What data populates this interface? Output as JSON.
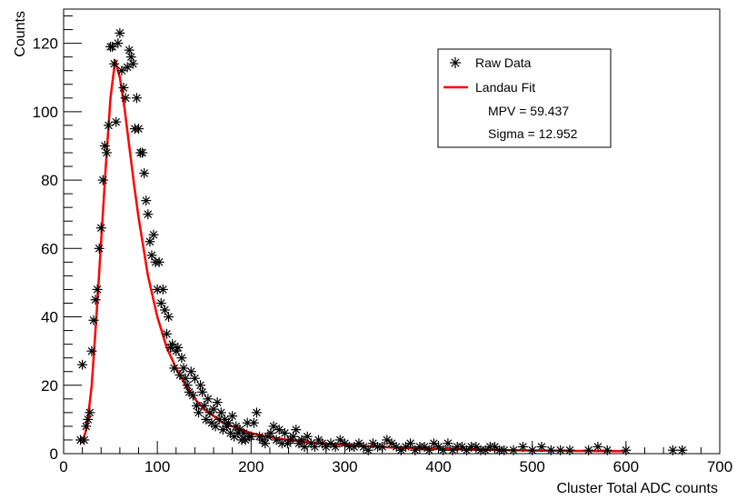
{
  "chart_data": {
    "type": "scatter",
    "xlabel": "Cluster Total ADC counts",
    "ylabel": "Counts",
    "xlim": [
      0,
      700
    ],
    "ylim": [
      0,
      130
    ],
    "x_ticks": [
      0,
      100,
      200,
      300,
      400,
      500,
      600,
      700
    ],
    "y_ticks": [
      0,
      20,
      40,
      60,
      80,
      100,
      120
    ],
    "grid": false,
    "legend_position": "top-right",
    "legend": {
      "raw_label": "Raw Data",
      "fit_label": "Landau Fit",
      "mpv_text": "MPV = 59.437",
      "sigma_text": "Sigma = 12.952"
    },
    "series": [
      {
        "name": "Raw Data",
        "marker": "asterisk",
        "color": "#000000",
        "x": [
          18,
          20,
          22,
          24,
          26,
          28,
          30,
          32,
          34,
          36,
          38,
          40,
          42,
          44,
          46,
          48,
          50,
          52,
          54,
          56,
          58,
          60,
          62,
          64,
          66,
          68,
          70,
          72,
          74,
          76,
          78,
          80,
          82,
          84,
          86,
          88,
          90,
          92,
          94,
          96,
          98,
          100,
          102,
          104,
          106,
          108,
          110,
          112,
          114,
          116,
          118,
          120,
          122,
          124,
          126,
          128,
          130,
          132,
          134,
          136,
          138,
          140,
          142,
          144,
          146,
          148,
          150,
          152,
          154,
          156,
          158,
          160,
          162,
          164,
          166,
          168,
          170,
          172,
          174,
          176,
          178,
          180,
          182,
          184,
          186,
          188,
          190,
          192,
          194,
          196,
          198,
          200,
          203,
          206,
          209,
          212,
          215,
          218,
          221,
          224,
          227,
          230,
          233,
          236,
          239,
          242,
          245,
          248,
          251,
          254,
          257,
          260,
          264,
          268,
          272,
          276,
          280,
          285,
          290,
          295,
          300,
          305,
          310,
          315,
          320,
          325,
          330,
          335,
          340,
          345,
          350,
          355,
          360,
          365,
          370,
          375,
          380,
          385,
          390,
          395,
          400,
          405,
          410,
          415,
          420,
          425,
          430,
          435,
          440,
          445,
          450,
          455,
          460,
          465,
          470,
          480,
          490,
          500,
          510,
          520,
          530,
          540,
          560,
          570,
          580,
          600,
          650,
          660
        ],
        "y": [
          4,
          26,
          4,
          8,
          10,
          12,
          30,
          39,
          45,
          48,
          60,
          66,
          80,
          90,
          88,
          96,
          119,
          119,
          114,
          97,
          120,
          123,
          112,
          107,
          104,
          113,
          118,
          116,
          114,
          95,
          104,
          95,
          88,
          88,
          82,
          74,
          70,
          62,
          58,
          64,
          56,
          48,
          56,
          44,
          48,
          42,
          35,
          40,
          31,
          32,
          25,
          30,
          31,
          23,
          28,
          25,
          22,
          20,
          18,
          24,
          17,
          22,
          14,
          12,
          20,
          18,
          14,
          10,
          16,
          12,
          9,
          13,
          8,
          15,
          10,
          12,
          7,
          10,
          8,
          9,
          6,
          11,
          5,
          8,
          6,
          7,
          4,
          6,
          4,
          9,
          5,
          5,
          9,
          12,
          5,
          4,
          3,
          5,
          6,
          8,
          4,
          7,
          3,
          6,
          3,
          4,
          5,
          7,
          3,
          4,
          2,
          5,
          3,
          2,
          4,
          3,
          2,
          3,
          2,
          4,
          3,
          2,
          2,
          3,
          2,
          1,
          3,
          2,
          2,
          4,
          3,
          2,
          1,
          2,
          3,
          1,
          2,
          2,
          1,
          3,
          2,
          1,
          3,
          1,
          2,
          2,
          1,
          2,
          2,
          1,
          1,
          2,
          2,
          1,
          1,
          1,
          2,
          1,
          2,
          1,
          1,
          1,
          1,
          2,
          1,
          1,
          1,
          1
        ]
      },
      {
        "name": "Landau Fit",
        "type": "line",
        "color": "#ff0000",
        "x": [
          20,
          25,
          30,
          35,
          40,
          45,
          50,
          55,
          60,
          65,
          70,
          75,
          80,
          90,
          100,
          110,
          120,
          130,
          140,
          150,
          160,
          170,
          180,
          190,
          200,
          220,
          240,
          260,
          280,
          300,
          350,
          400,
          450,
          500,
          550,
          600
        ],
        "y": [
          3,
          8,
          20,
          40,
          62,
          84,
          104,
          115,
          110,
          101,
          90,
          79,
          69,
          52,
          40,
          31,
          25,
          20,
          16,
          13,
          11,
          9,
          8,
          7,
          6,
          4.8,
          4,
          3.4,
          2.9,
          2.5,
          1.8,
          1.4,
          1.1,
          0.9,
          0.8,
          0.7
        ]
      }
    ]
  }
}
